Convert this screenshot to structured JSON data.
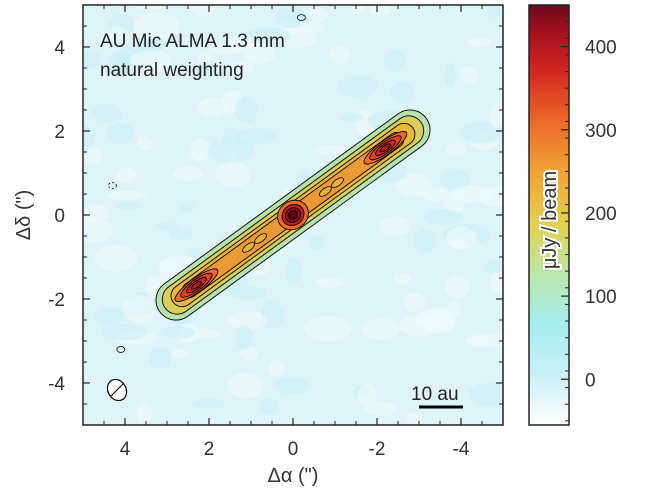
{
  "chart_data": {
    "type": "heatmap",
    "title_lines": [
      "AU Mic ALMA 1.3 mm",
      "natural weighting"
    ],
    "xlabel": "Δα (\")",
    "ylabel": "Δδ (\")",
    "xlim": [
      5,
      -5
    ],
    "ylim": [
      -5,
      5
    ],
    "xticks": [
      4,
      2,
      0,
      -2,
      -4
    ],
    "yticks": [
      4,
      2,
      0,
      -2,
      -4
    ],
    "colorbar": {
      "label": "μJy / beam",
      "range": [
        -55,
        450
      ],
      "ticks": [
        0,
        100,
        200,
        300,
        400
      ],
      "colormap": "cubehelix-like: white → cyan → yellow → orange → red → dark red"
    },
    "disk": {
      "position_angle_deg": 128.5,
      "extent_arcsec": 4.0,
      "peaks": [
        {
          "name": "central star",
          "x": 0.0,
          "y": 0.0,
          "value": 440
        },
        {
          "name": "NW ansa",
          "x": -2.2,
          "y": 1.6,
          "value": 330
        },
        {
          "name": "SE ansa",
          "x": 2.2,
          "y": -1.8,
          "value": 340
        }
      ]
    },
    "scale_bar": {
      "label": "10 au",
      "length_arcsec": 1.0
    },
    "beam": {
      "x": 4.2,
      "y": -4.2
    }
  }
}
